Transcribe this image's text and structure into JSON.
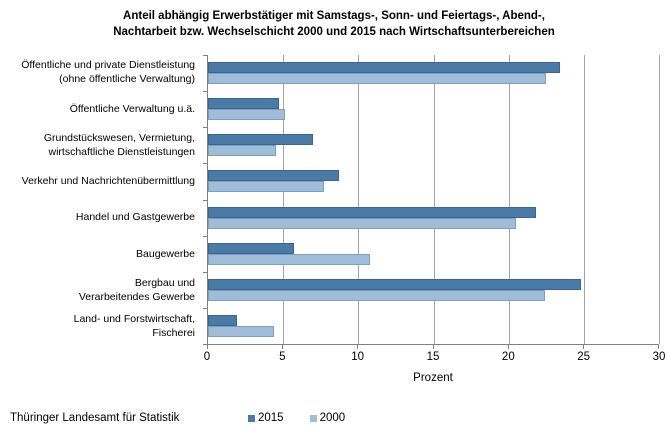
{
  "chart_data": {
    "type": "bar",
    "orientation": "horizontal",
    "title": "Anteil abhängig Erwerbstätiger mit Samstags-, Sonn- und Feiertags-, Abend-,\nNachtarbeit bzw. Wechselschicht 2000 und 2015 nach Wirtschaftsunterbereichen",
    "categories": [
      "Öffentliche und private Dienstleistung\n(ohne öffentliche Verwaltung)",
      "Öffentliche Verwaltung u.ä.",
      "Grundstückswesen, Vermietung,\nwirtschaftliche Dienstleistungen",
      "Verkehr und Nachrichtenübermittlung",
      "Handel und Gastgewerbe",
      "Baugewerbe",
      "Bergbau und\nVerarbeitendes Gewerbe",
      "Land- und Forstwirtschaft,\nFischerei"
    ],
    "series": [
      {
        "name": "2015",
        "color": "#4a7aa6",
        "border_color": "#3a6590",
        "values": [
          23.4,
          4.7,
          7.0,
          8.7,
          21.8,
          5.7,
          24.8,
          1.9
        ]
      },
      {
        "name": "2000",
        "color": "#9fbcd9",
        "border_color": "#7e9ec0",
        "values": [
          22.5,
          5.1,
          4.5,
          7.7,
          20.5,
          10.8,
          22.4,
          4.4
        ]
      }
    ],
    "xlabel": "Prozent",
    "xlim": [
      0,
      30
    ],
    "xticks": [
      0,
      5,
      10,
      15,
      20,
      25,
      30
    ],
    "grid": true,
    "legend_position": "bottom"
  },
  "footer": {
    "source": "Thüringer Landesamt für Statistik"
  },
  "colors": {
    "gridline": "#a3a3a3",
    "axis": "#808080",
    "text": "#000000"
  }
}
